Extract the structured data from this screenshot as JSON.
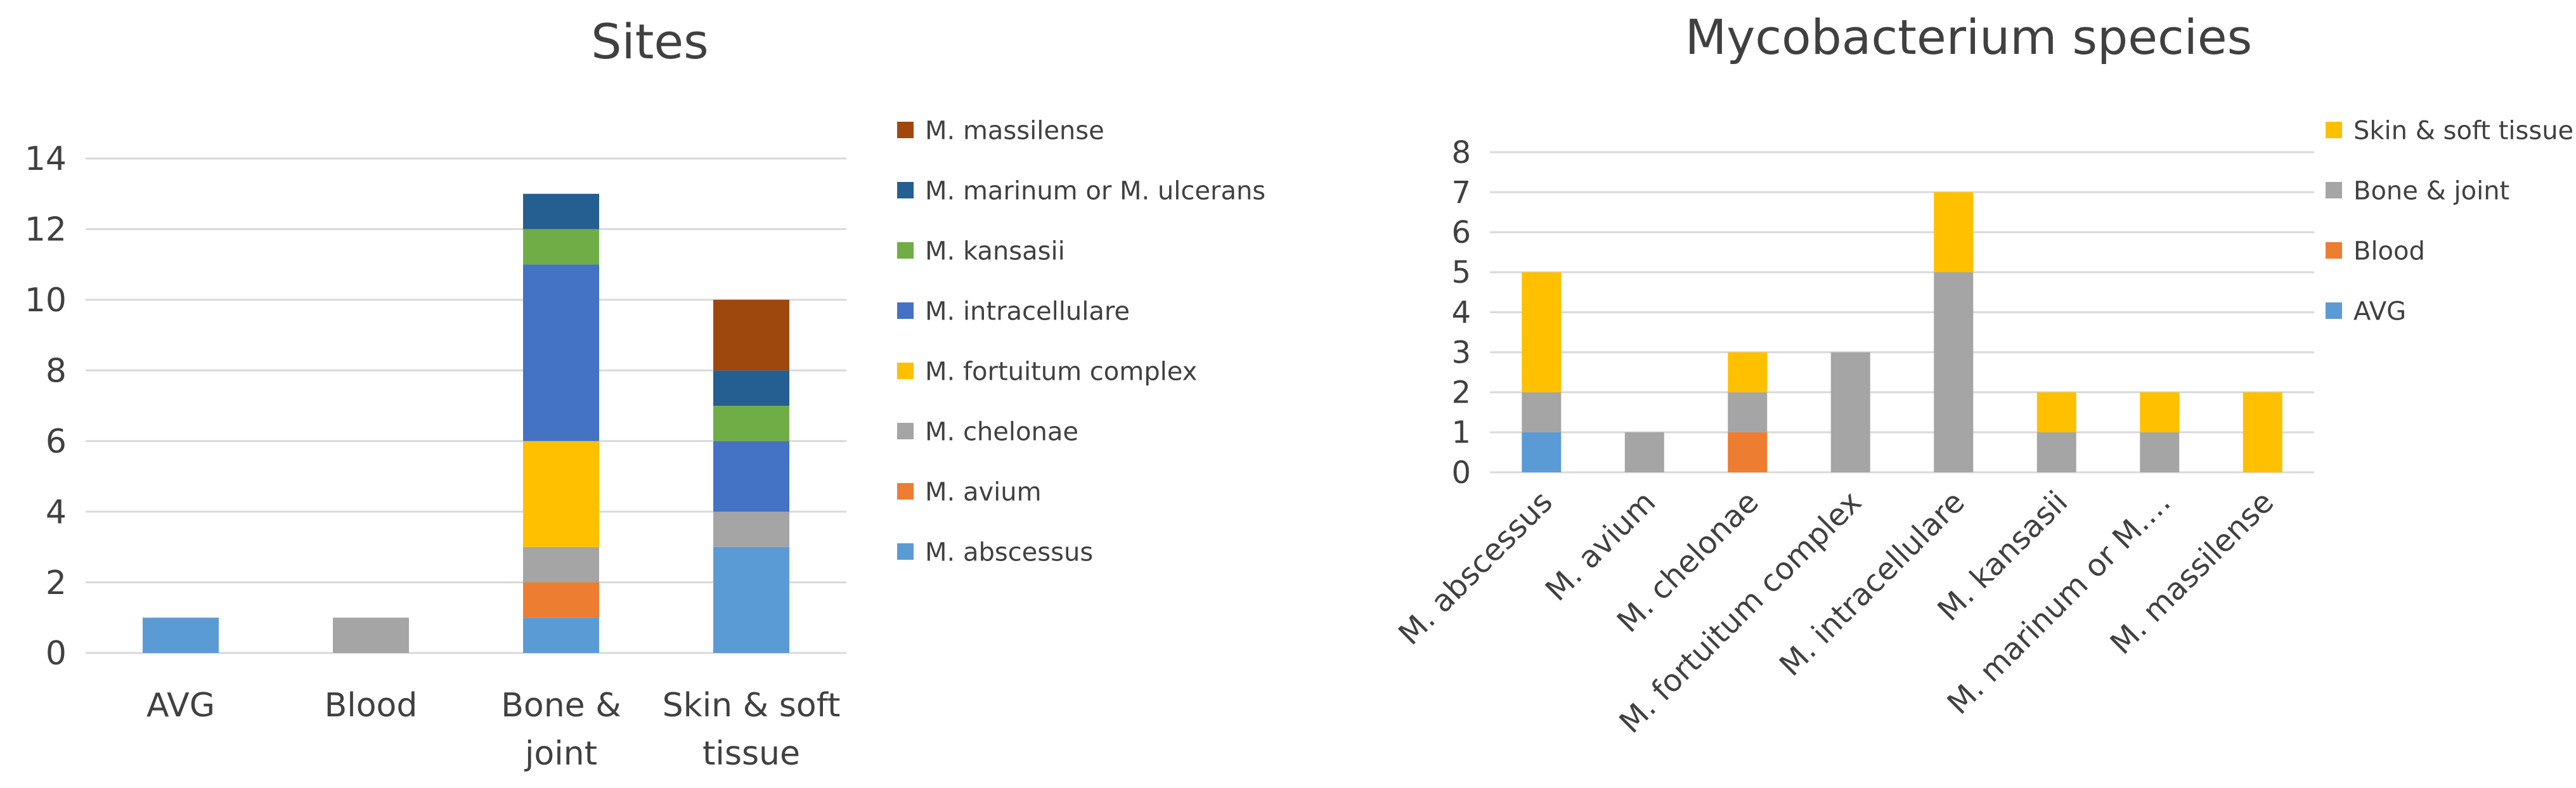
{
  "chart_data": [
    {
      "type": "bar",
      "stacked": true,
      "title": "Sites",
      "xlabel": "",
      "ylabel": "",
      "categories": [
        "AVG",
        "Blood",
        "Bone & joint",
        "Skin & soft tissue"
      ],
      "category_lines": [
        [
          "AVG"
        ],
        [
          "Blood"
        ],
        [
          "Bone &",
          "joint"
        ],
        [
          "Skin & soft",
          "tissue"
        ]
      ],
      "ylim": [
        0,
        14
      ],
      "yticks": [
        "0",
        "2",
        "4",
        "6",
        "8",
        "10",
        "12",
        "14"
      ],
      "grid": true,
      "legend_position": "right",
      "series": [
        {
          "name": "M. abscessus",
          "color": "#5B9BD5",
          "values": [
            1,
            0,
            1,
            3
          ]
        },
        {
          "name": "M. avium",
          "color": "#ED7D31",
          "values": [
            0,
            0,
            1,
            0
          ]
        },
        {
          "name": "M. chelonae",
          "color": "#A5A5A5",
          "values": [
            0,
            1,
            1,
            1
          ]
        },
        {
          "name": "M. fortuitum complex",
          "color": "#FFC000",
          "values": [
            0,
            0,
            3,
            0
          ]
        },
        {
          "name": "M. intracellulare",
          "color": "#4472C4",
          "values": [
            0,
            0,
            5,
            2
          ]
        },
        {
          "name": "M. kansasii",
          "color": "#70AD47",
          "values": [
            0,
            0,
            1,
            1
          ]
        },
        {
          "name": "M. marinum or M. ulcerans",
          "color": "#255E91",
          "values": [
            0,
            0,
            1,
            1
          ]
        },
        {
          "name": "M. massilense",
          "color": "#9E480E",
          "values": [
            0,
            0,
            0,
            2
          ]
        }
      ]
    },
    {
      "type": "bar",
      "stacked": true,
      "title": "Mycobacterium species",
      "xlabel": "",
      "ylabel": "",
      "categories": [
        "M. abscessus",
        "M. avium",
        "M. chelonae",
        "M. fortuitum complex",
        "M. intracellulare",
        "M. kansasii",
        "M. marinum or M.…",
        "M. massilense"
      ],
      "ylim": [
        0,
        8
      ],
      "yticks": [
        "0",
        "1",
        "2",
        "3",
        "4",
        "5",
        "6",
        "7",
        "8"
      ],
      "grid": true,
      "legend_position": "right",
      "series": [
        {
          "name": "AVG",
          "color": "#5B9BD5",
          "values": [
            1,
            0,
            0,
            0,
            0,
            0,
            0,
            0
          ]
        },
        {
          "name": "Blood",
          "color": "#ED7D31",
          "values": [
            0,
            0,
            1,
            0,
            0,
            0,
            0,
            0
          ]
        },
        {
          "name": "Bone & joint",
          "color": "#A5A5A5",
          "values": [
            1,
            1,
            1,
            3,
            5,
            1,
            1,
            0
          ]
        },
        {
          "name": "Skin & soft tissue",
          "color": "#FFC000",
          "values": [
            3,
            0,
            1,
            0,
            2,
            1,
            1,
            2
          ]
        }
      ]
    }
  ]
}
